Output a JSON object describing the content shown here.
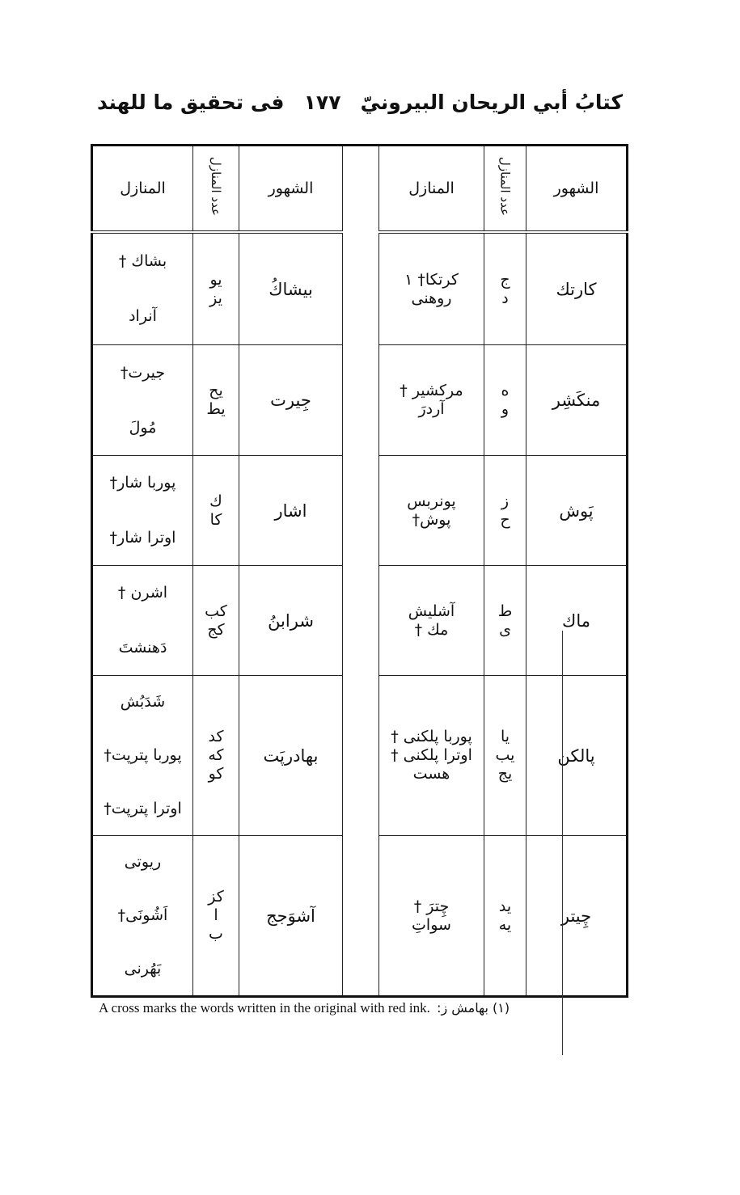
{
  "header": {
    "right_title": "كتابُ أبي الريحان البيرونيّ",
    "page_number": "١٧٧",
    "left_title": "فى تحقيق ما للهند"
  },
  "columns": {
    "months": "الشهور",
    "count": "عدد المنازل",
    "stations": "المنازل"
  },
  "right_group": [
    {
      "month": "كارتك",
      "entries": [
        {
          "count": "ج",
          "name": "كرتكا† ١"
        },
        {
          "count": "د",
          "name": "روهنى"
        }
      ]
    },
    {
      "month": "منكَشِر",
      "entries": [
        {
          "count": "ه",
          "name": "مركشير †"
        },
        {
          "count": "و",
          "name": "آردرَ"
        }
      ]
    },
    {
      "month": "پَوش",
      "entries": [
        {
          "count": "ز",
          "name": "پونربس"
        },
        {
          "count": "ح",
          "name": "پوش†"
        }
      ]
    },
    {
      "month": "ماك",
      "entries": [
        {
          "count": "ط",
          "name": "آشليش"
        },
        {
          "count": "ى",
          "name": "مك †"
        }
      ]
    },
    {
      "month": "پالكن",
      "entries": [
        {
          "count": "يا",
          "name": "پوربا پلكنى †"
        },
        {
          "count": "يب",
          "name": "اوترا پلكنى †"
        },
        {
          "count": "يج",
          "name": "هست"
        }
      ]
    },
    {
      "month": "چِيتر",
      "entries": [
        {
          "count": "يد",
          "name": "چِترَ †"
        },
        {
          "count": "يه",
          "name": "سواتِ"
        }
      ]
    }
  ],
  "left_group": [
    {
      "month": "بيشاكُ",
      "entries": [
        {
          "count": "يو",
          "name": "بشاك †"
        },
        {
          "count": "يز",
          "name": "آنراد"
        }
      ]
    },
    {
      "month": "جِيرت",
      "entries": [
        {
          "count": "يح",
          "name": "جيرت†"
        },
        {
          "count": "يط",
          "name": "مُولَ"
        }
      ]
    },
    {
      "month": "اشار",
      "entries": [
        {
          "count": "ك",
          "name": "پوربا شار†"
        },
        {
          "count": "كا",
          "name": "اوترا شار†"
        }
      ]
    },
    {
      "month": "شرابنُ",
      "entries": [
        {
          "count": "كب",
          "name": "اشرن †"
        },
        {
          "count": "كج",
          "name": "دَهنشتَ"
        }
      ]
    },
    {
      "month": "بهادرپَت",
      "entries": [
        {
          "count": "كد",
          "name": "شَدَبُش"
        },
        {
          "count": "كه",
          "name": "پوربا پترپت†"
        },
        {
          "count": "كو",
          "name": "اوترا پترپت†"
        }
      ]
    },
    {
      "month": "آشوَجج",
      "entries": [
        {
          "count": "كز",
          "name": "ريوتى"
        },
        {
          "count": "ا",
          "name": "اَشُونَى†"
        },
        {
          "count": "ب",
          "name": "بَهُرنى"
        }
      ]
    }
  ],
  "footnote": {
    "marker": "(١) بهامش ز:",
    "text": "A cross marks the words written in the original with red ink."
  }
}
